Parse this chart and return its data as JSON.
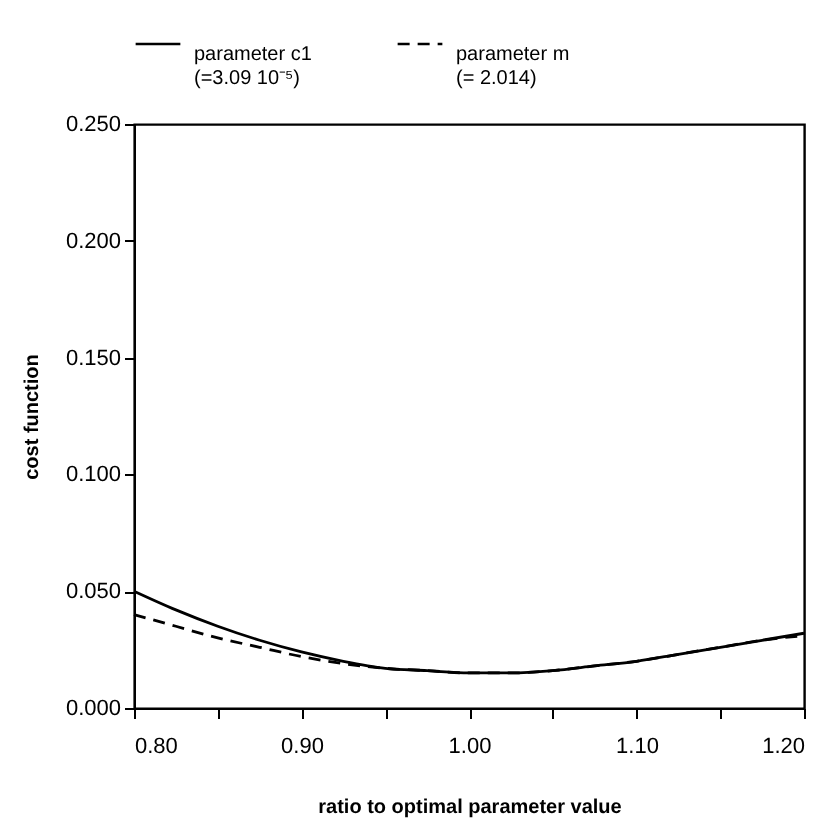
{
  "chart_data": {
    "type": "line",
    "xlabel": "ratio to optimal parameter value",
    "ylabel": "cost function",
    "x": [
      0.8,
      0.825,
      0.85,
      0.875,
      0.9,
      0.925,
      0.95,
      0.975,
      1.0,
      1.025,
      1.05,
      1.075,
      1.1,
      1.125,
      1.15,
      1.175,
      1.2
    ],
    "series": [
      {
        "name": "parameter c1\n(=3.09 10⁻⁵)",
        "color": "#000000",
        "line_style": "solid",
        "values": [
          0.05,
          0.042,
          0.035,
          0.029,
          0.024,
          0.02,
          0.017,
          0.016,
          0.015,
          0.015,
          0.016,
          0.018,
          0.02,
          0.023,
          0.026,
          0.029,
          0.032
        ]
      },
      {
        "name": "parameter m\n(= 2.014)",
        "color": "#000000",
        "line_style": "dashed",
        "values": [
          0.04,
          0.035,
          0.03,
          0.026,
          0.022,
          0.019,
          0.017,
          0.016,
          0.015,
          0.015,
          0.016,
          0.018,
          0.02,
          0.023,
          0.026,
          0.029,
          0.031
        ]
      }
    ],
    "xlim": [
      0.8,
      1.2
    ],
    "xticks": [
      {
        "value": 0.8,
        "label": "0.80"
      },
      {
        "value": 0.85,
        "label": null
      },
      {
        "value": 0.9,
        "label": "0.90"
      },
      {
        "value": 0.95,
        "label": null
      },
      {
        "value": 1.0,
        "label": "1.00"
      },
      {
        "value": 1.05,
        "label": null
      },
      {
        "value": 1.1,
        "label": "1.10"
      },
      {
        "value": 1.15,
        "label": null
      },
      {
        "value": 1.2,
        "label": "1.20"
      }
    ],
    "ylim": [
      0,
      0.25
    ],
    "yticks": [
      {
        "value": 0,
        "label": "0.000"
      },
      {
        "value": 0.05,
        "label": "0.050"
      },
      {
        "value": 0.1,
        "label": "0.100"
      },
      {
        "value": 0.15,
        "label": "0.150"
      },
      {
        "value": 0.2,
        "label": "0.200"
      },
      {
        "value": 0.25,
        "label": "0.250"
      }
    ],
    "grid": false,
    "legend": "top",
    "marker": "none"
  }
}
